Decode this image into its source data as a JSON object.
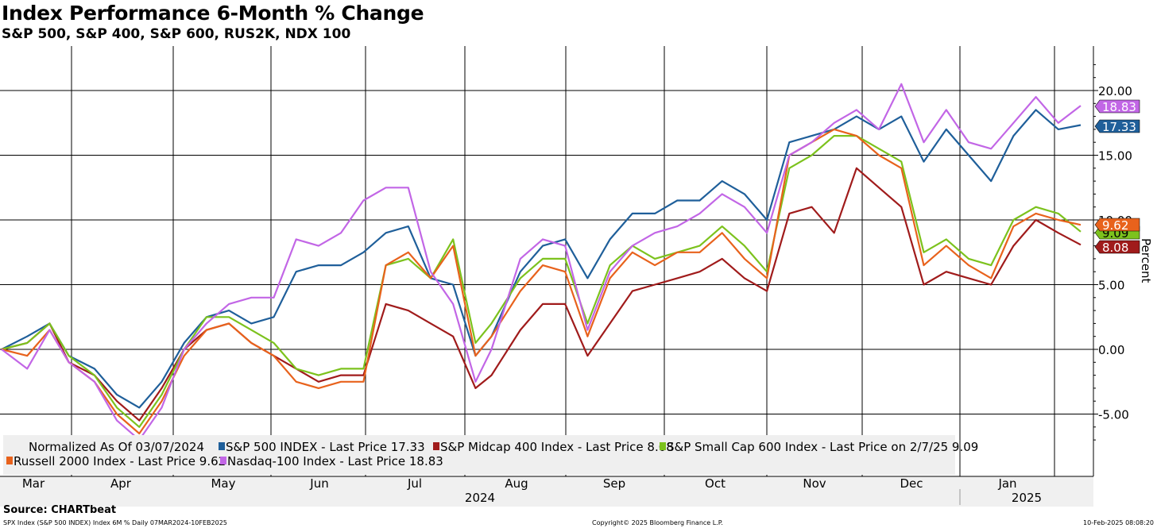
{
  "header": {
    "title": "Index Performance 6-Month % Change",
    "subtitle": "S&P 500, S&P 400, S&P 600, RUS2K, NDX 100"
  },
  "footer": {
    "source": "Source: CHARTbeat",
    "left": "SPX Index (S&P 500 INDEX) Index 6M %  Daily 07MAR2024-10FEB2025",
    "center": "Copyright© 2025 Bloomberg Finance L.P.",
    "right": "10-Feb-2025 08:08:20"
  },
  "legend": {
    "normalized": "Normalized As Of 03/07/2024"
  },
  "chart_data": {
    "type": "line",
    "title": "Index Performance 6-Month % Change",
    "subtitle": "S&P 500, S&P 400, S&P 600, RUS2K, NDX 100",
    "ylabel": "Percent",
    "ylim": [
      -8.0,
      23.0
    ],
    "yticks": [
      -5,
      0,
      5,
      10,
      15,
      20
    ],
    "ytick_labels": [
      "-5.00",
      "0.00",
      "5.00",
      "10.00",
      "15.00",
      "20.00"
    ],
    "x_month_labels": [
      "Mar",
      "Apr",
      "May",
      "Jun",
      "Jul",
      "Aug",
      "Sep",
      "Oct",
      "Nov",
      "Dec",
      "Jan"
    ],
    "x_year_labels": [
      "2024",
      "2025"
    ],
    "grid": true,
    "legend_position": "bottom",
    "x": [
      "2024-03-07",
      "2024-03-15",
      "2024-03-22",
      "2024-03-28",
      "2024-04-05",
      "2024-04-12",
      "2024-04-19",
      "2024-04-26",
      "2024-05-03",
      "2024-05-10",
      "2024-05-17",
      "2024-05-24",
      "2024-05-31",
      "2024-06-07",
      "2024-06-14",
      "2024-06-21",
      "2024-06-28",
      "2024-07-05",
      "2024-07-12",
      "2024-07-19",
      "2024-07-26",
      "2024-08-02",
      "2024-08-07",
      "2024-08-16",
      "2024-08-23",
      "2024-08-30",
      "2024-09-06",
      "2024-09-13",
      "2024-09-20",
      "2024-09-27",
      "2024-10-04",
      "2024-10-11",
      "2024-10-18",
      "2024-10-25",
      "2024-11-01",
      "2024-11-08",
      "2024-11-15",
      "2024-11-22",
      "2024-11-29",
      "2024-12-06",
      "2024-12-13",
      "2024-12-20",
      "2024-12-27",
      "2025-01-03",
      "2025-01-10",
      "2025-01-17",
      "2025-01-24",
      "2025-01-31",
      "2025-02-07"
    ],
    "series": [
      {
        "name": "S&P 500 INDEX - Last Price",
        "color": "#1f5f9a",
        "last": "17.33",
        "values": [
          0.0,
          1.0,
          2.0,
          -0.5,
          -1.5,
          -3.5,
          -4.5,
          -2.5,
          0.5,
          2.5,
          3.0,
          2.0,
          2.5,
          6.0,
          6.5,
          6.5,
          7.5,
          9.0,
          9.5,
          5.5,
          5.0,
          -0.5,
          1.0,
          6.0,
          8.0,
          8.5,
          5.5,
          8.5,
          10.5,
          10.5,
          11.5,
          11.5,
          13.0,
          12.0,
          10.0,
          16.0,
          16.5,
          17.0,
          18.0,
          17.0,
          18.0,
          14.5,
          17.0,
          15.0,
          13.0,
          16.5,
          18.5,
          17.0,
          17.33
        ]
      },
      {
        "name": "S&P Midcap 400 Index - Last Price",
        "color": "#a01b1b",
        "last": "8.08",
        "values": [
          0.0,
          0.5,
          2.0,
          -1.0,
          -2.0,
          -4.0,
          -5.5,
          -3.0,
          0.0,
          1.5,
          2.0,
          0.5,
          -0.5,
          -1.5,
          -2.5,
          -2.0,
          -2.0,
          3.5,
          3.0,
          2.0,
          1.0,
          -3.0,
          -2.0,
          1.5,
          3.5,
          3.5,
          -0.5,
          2.0,
          4.5,
          5.0,
          5.5,
          6.0,
          7.0,
          5.5,
          4.5,
          10.5,
          11.0,
          9.0,
          14.0,
          12.5,
          11.0,
          5.0,
          6.0,
          5.5,
          5.0,
          8.0,
          10.0,
          9.0,
          8.08
        ]
      },
      {
        "name": "S&P Small Cap 600 Index - Last Price on 2/7/25",
        "color": "#7cc21d",
        "last": "9.09",
        "values": [
          0.0,
          0.5,
          2.0,
          -0.5,
          -2.0,
          -4.5,
          -6.0,
          -3.5,
          0.0,
          2.5,
          2.5,
          1.5,
          0.5,
          -1.5,
          -2.0,
          -1.5,
          -1.5,
          6.5,
          7.0,
          5.5,
          8.5,
          0.5,
          2.0,
          5.5,
          7.0,
          7.0,
          2.0,
          6.5,
          8.0,
          7.0,
          7.5,
          8.0,
          9.5,
          8.0,
          6.0,
          14.0,
          15.0,
          16.5,
          16.5,
          15.5,
          14.5,
          7.5,
          8.5,
          7.0,
          6.5,
          10.0,
          11.0,
          10.5,
          9.09
        ]
      },
      {
        "name": "Russell 2000 Index - Last Price",
        "color": "#e8621c",
        "last": "9.62",
        "values": [
          0.0,
          -0.5,
          1.5,
          -1.0,
          -2.5,
          -5.0,
          -6.5,
          -4.0,
          -0.5,
          1.5,
          2.0,
          0.5,
          -0.5,
          -2.5,
          -3.0,
          -2.5,
          -2.5,
          6.5,
          7.5,
          5.5,
          8.0,
          -0.5,
          1.0,
          4.5,
          6.5,
          6.0,
          1.0,
          5.5,
          7.5,
          6.5,
          7.5,
          7.5,
          9.0,
          7.0,
          5.5,
          15.0,
          16.0,
          17.0,
          16.5,
          15.0,
          14.0,
          6.5,
          8.0,
          6.5,
          5.5,
          9.5,
          10.5,
          10.0,
          9.62
        ]
      },
      {
        "name": "Nasdaq-100 Index - Last Price",
        "color": "#c266e6",
        "last": "18.83",
        "values": [
          0.0,
          -1.5,
          1.5,
          -1.0,
          -2.5,
          -5.5,
          -7.0,
          -4.5,
          0.0,
          2.0,
          3.5,
          4.0,
          4.0,
          8.5,
          8.0,
          9.0,
          11.5,
          12.5,
          12.5,
          6.0,
          3.5,
          -2.5,
          0.0,
          7.0,
          8.5,
          8.0,
          1.5,
          6.0,
          8.0,
          9.0,
          9.5,
          10.5,
          12.0,
          11.0,
          9.0,
          15.0,
          16.0,
          17.5,
          18.5,
          17.0,
          20.5,
          16.0,
          18.5,
          16.0,
          15.5,
          17.5,
          19.5,
          17.5,
          18.83
        ]
      }
    ]
  }
}
